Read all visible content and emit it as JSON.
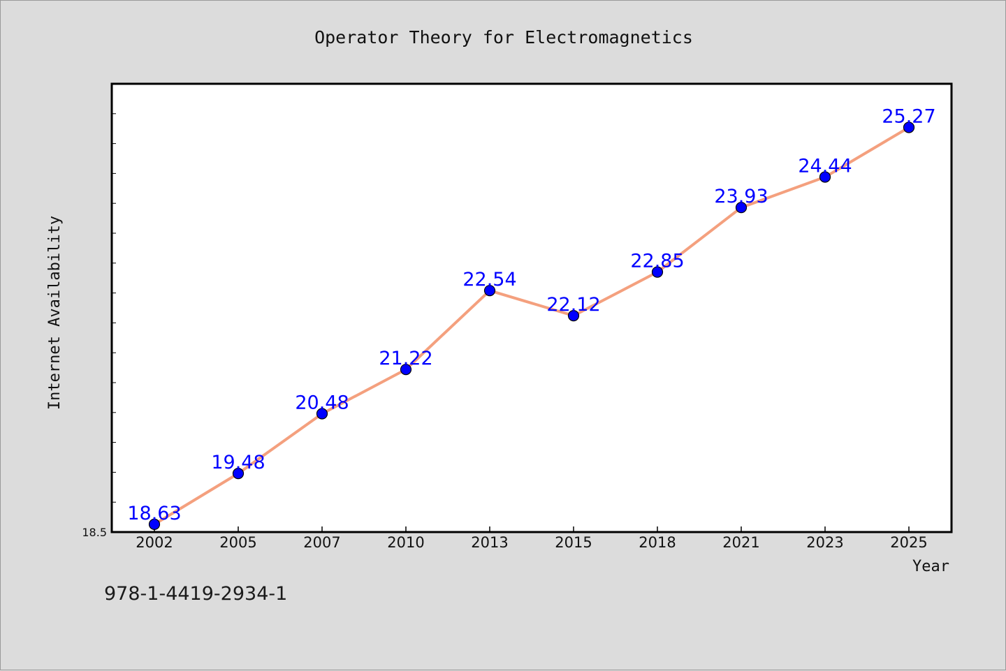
{
  "chart_data": {
    "type": "line",
    "title": "Operator Theory for Electromagnetics",
    "xlabel": "Year",
    "ylabel": "Internet Availability",
    "categories": [
      "2002",
      "2005",
      "2007",
      "2010",
      "2013",
      "2015",
      "2018",
      "2021",
      "2023",
      "2025"
    ],
    "series": [
      {
        "values": [
          18.63,
          19.48,
          20.48,
          21.22,
          22.54,
          22.12,
          22.85,
          23.93,
          24.44,
          25.27
        ],
        "line_color": "#f4a07e",
        "marker_color": "#0000ff"
      }
    ],
    "data_labels": [
      "18.63",
      "19.48",
      "20.48",
      "21.22",
      "22.54",
      "22.12",
      "22.85",
      "23.93",
      "24.44",
      "25.27"
    ],
    "y_tick_label": "18.5",
    "ylim": [
      18.5,
      26.0
    ],
    "grid": false,
    "label_color": "#0000ff"
  },
  "footer_code": "978-1-4419-2934-1"
}
